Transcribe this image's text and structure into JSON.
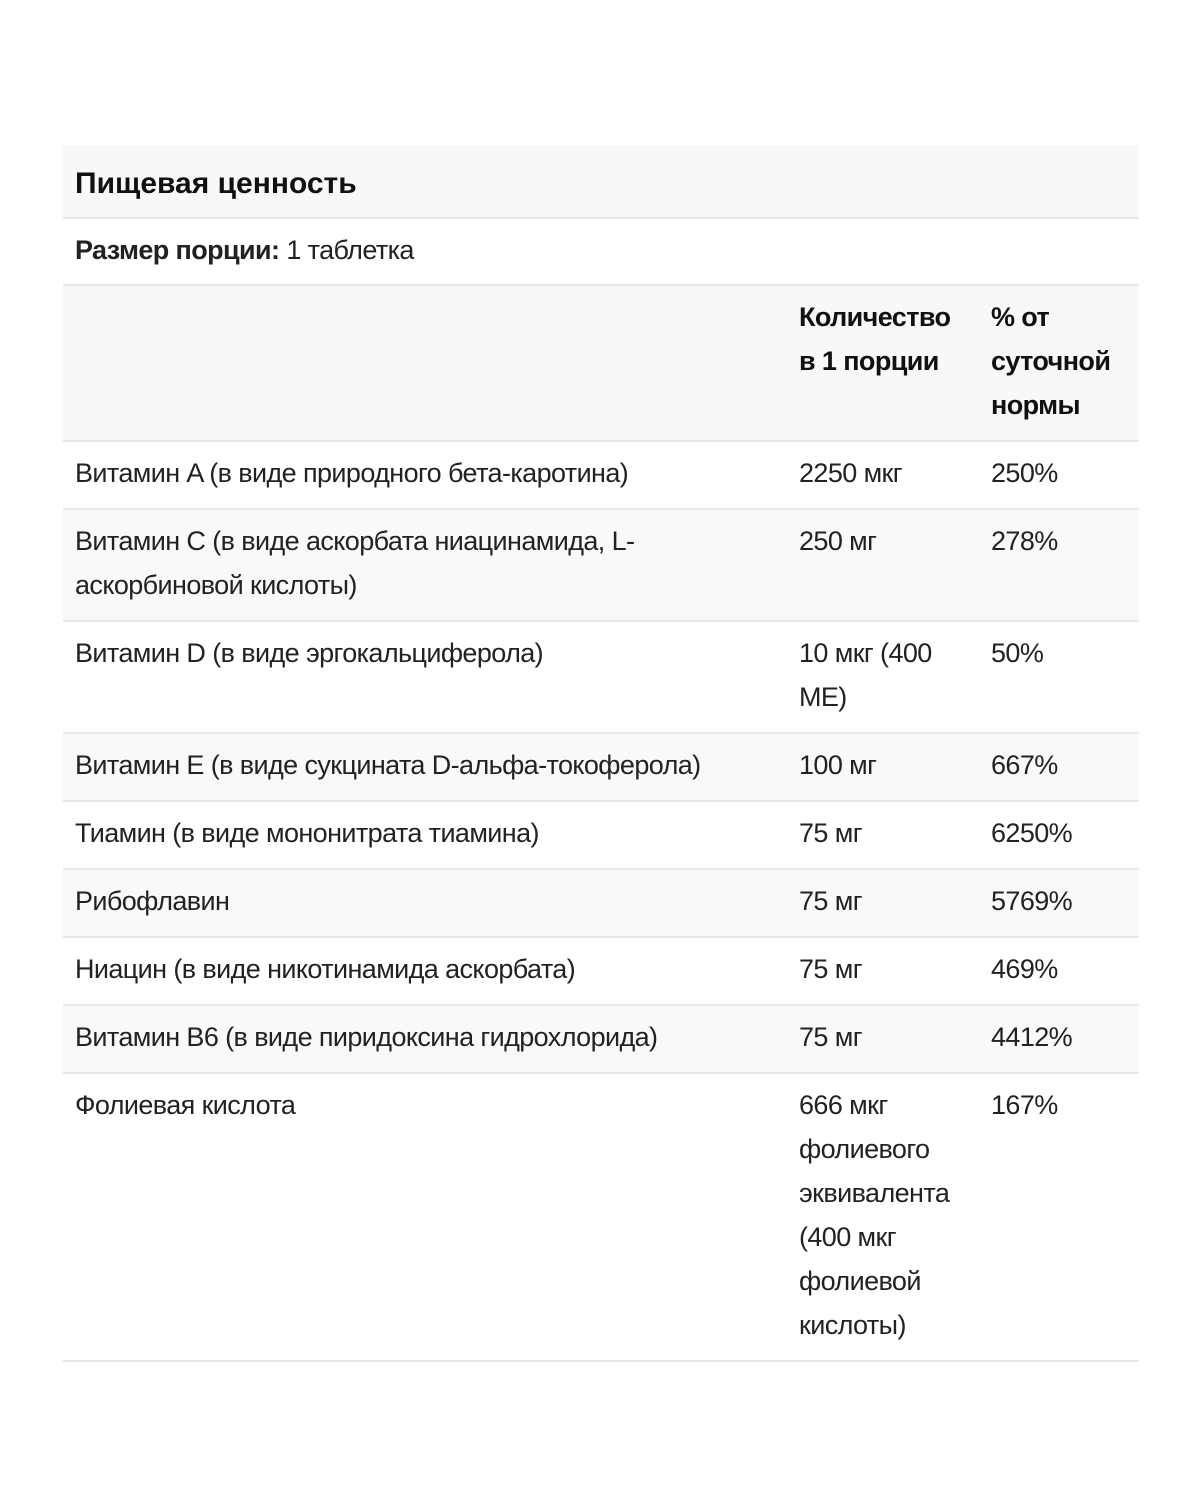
{
  "title": "Пищевая ценность",
  "serving": {
    "label": "Размер порции:",
    "value": "1 таблетка"
  },
  "columns": [
    "",
    "Количество в 1 порции",
    "% от суточной нормы"
  ],
  "rows": [
    {
      "name": "Витамин A (в виде природного бета-каротина)",
      "amount": "2250 мкг",
      "dv": "250%"
    },
    {
      "name": "Витамин C (в виде аскорбата ниацинамида, L-аскорбиновой кислоты)",
      "amount": "250 мг",
      "dv": "278%"
    },
    {
      "name": "Витамин D (в виде эргокальциферола)",
      "amount": "10 мкг (400 МЕ)",
      "dv": "50%"
    },
    {
      "name": "Витамин E (в виде сукцината D-альфа-токоферола)",
      "amount": "100 мг",
      "dv": "667%"
    },
    {
      "name": "Тиамин (в виде мононитрата тиамина)",
      "amount": "75 мг",
      "dv": "6250%"
    },
    {
      "name": "Рибофлавин",
      "amount": "75 мг",
      "dv": "5769%"
    },
    {
      "name": "Ниацин (в виде никотинамида аскорбата)",
      "amount": "75 мг",
      "dv": "469%"
    },
    {
      "name": "Витамин B6 (в виде пиридоксина гидрохлорида)",
      "amount": "75 мг",
      "dv": "4412%"
    },
    {
      "name": "Фолиевая кислота",
      "amount": "666 мкг фолиевого эквивалента (400 мкг фолиевой кислоты)",
      "dv": "167%"
    }
  ]
}
